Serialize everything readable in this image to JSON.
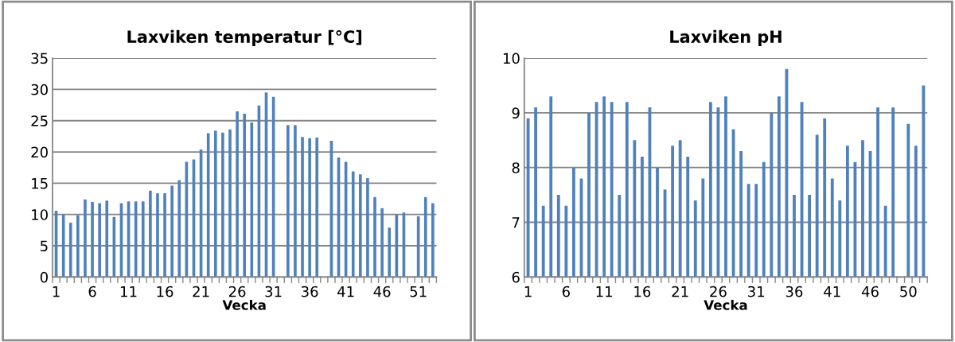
{
  "chart_data": [
    {
      "type": "bar",
      "title": "Laxviken temperatur [°C]",
      "xlabel": "Vecka",
      "categories": [
        "1",
        null,
        null,
        null,
        null,
        "6",
        null,
        null,
        null,
        null,
        "11",
        null,
        null,
        null,
        null,
        "16",
        null,
        null,
        null,
        null,
        "21",
        null,
        null,
        null,
        null,
        "26",
        null,
        null,
        null,
        null,
        "31",
        null,
        null,
        null,
        null,
        "36",
        null,
        null,
        null,
        null,
        "41",
        null,
        null,
        null,
        null,
        "46",
        null,
        null,
        null,
        null,
        "51",
        null,
        null
      ],
      "values": [
        10.6,
        10.0,
        8.7,
        9.9,
        12.4,
        12.0,
        11.8,
        12.2,
        9.6,
        11.8,
        12.1,
        12.1,
        12.1,
        13.8,
        13.4,
        13.4,
        14.6,
        15.5,
        18.4,
        18.8,
        20.4,
        23.0,
        23.4,
        23.1,
        23.6,
        26.5,
        26.1,
        24.7,
        27.4,
        29.5,
        28.8,
        null,
        24.3,
        24.3,
        22.4,
        22.2,
        22.3,
        null,
        21.8,
        19.1,
        18.4,
        16.9,
        16.4,
        15.8,
        12.8,
        11.0,
        7.9,
        10.0,
        10.3,
        null,
        9.7,
        12.8,
        11.8
      ],
      "color": "#4f81bd",
      "ylim": [
        0,
        35
      ],
      "yticks": [
        0,
        5,
        10,
        15,
        20,
        25,
        30,
        35
      ],
      "grid": "y",
      "legend": false
    },
    {
      "type": "bar",
      "title": "Laxviken pH",
      "xlabel": "Vecka",
      "categories": [
        "1",
        null,
        null,
        null,
        null,
        "6",
        null,
        null,
        null,
        null,
        "11",
        null,
        null,
        null,
        null,
        "16",
        null,
        null,
        null,
        null,
        "21",
        null,
        null,
        null,
        null,
        "26",
        null,
        null,
        null,
        null,
        "31",
        null,
        null,
        null,
        null,
        "36",
        null,
        null,
        null,
        null,
        "41",
        null,
        null,
        null,
        null,
        "46",
        null,
        null,
        null,
        null,
        "50",
        null,
        null
      ],
      "values": [
        8.9,
        9.1,
        7.3,
        9.3,
        7.5,
        7.3,
        8.0,
        7.8,
        9.0,
        9.2,
        9.3,
        9.2,
        7.5,
        9.2,
        8.5,
        8.2,
        9.1,
        8.0,
        7.6,
        8.4,
        8.5,
        8.2,
        7.4,
        7.8,
        9.2,
        9.1,
        9.3,
        8.7,
        8.3,
        7.7,
        7.7,
        8.1,
        9.0,
        9.3,
        9.8,
        7.5,
        9.2,
        7.5,
        8.6,
        8.9,
        7.8,
        7.4,
        8.4,
        8.1,
        8.5,
        8.3,
        9.1,
        7.3,
        9.1,
        null,
        8.8,
        8.4,
        9.5
      ],
      "color": "#4f81bd",
      "ylim": [
        6,
        10
      ],
      "yticks": [
        6,
        7,
        8,
        9,
        10
      ],
      "grid": "y",
      "legend": false
    }
  ]
}
